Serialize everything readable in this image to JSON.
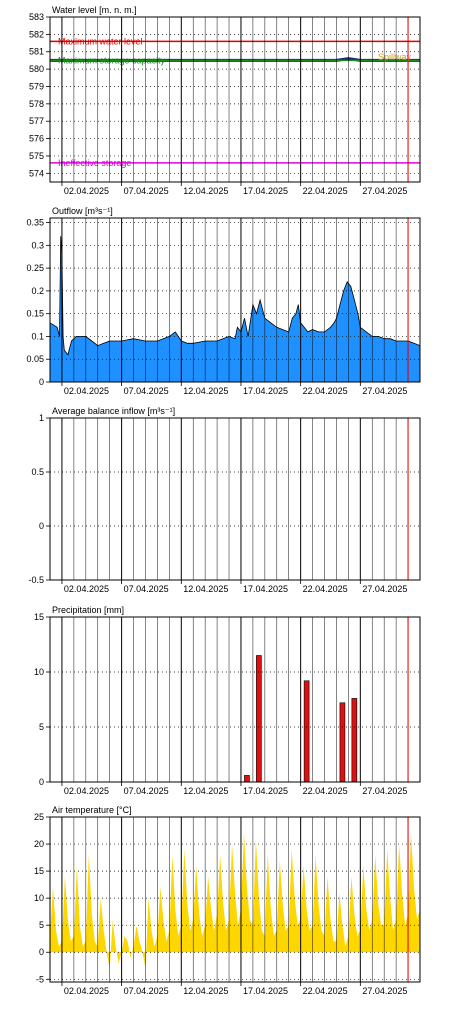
{
  "chart_data": [
    {
      "id": "water_level",
      "type": "line",
      "title": "Water level [m. n. m.]",
      "ylim": [
        573.5,
        583
      ],
      "yticks": [
        574,
        575,
        576,
        577,
        578,
        579,
        580,
        581,
        582,
        583
      ],
      "xticks": [
        "02.04.2025",
        "07.04.2025",
        "12.04.2025",
        "17.04.2025",
        "22.04.2025",
        "27.04.2025"
      ],
      "current_day": 30.0,
      "reference_lines": [
        {
          "name": "Maximum water level",
          "value": 581.6,
          "color": "#e00000"
        },
        {
          "name": "Maximum storage capacity",
          "value": 580.5,
          "color": "#1a8a1a"
        },
        {
          "name": "Ineffective storage",
          "value": 574.6,
          "color": "#e000e0"
        }
      ],
      "label_spillway": "Spillway",
      "series": [
        {
          "color": "#1a237e",
          "x": [
            0,
            5,
            10,
            15,
            20,
            24,
            25,
            26,
            31
          ],
          "values": [
            580.5,
            580.5,
            580.5,
            580.5,
            580.5,
            580.5,
            580.6,
            580.5,
            580.5
          ]
        }
      ]
    },
    {
      "id": "outflow",
      "type": "area",
      "title": "Outflow [m³s⁻¹]",
      "ylim": [
        0,
        0.36
      ],
      "yticks": [
        0,
        0.05,
        0.1,
        0.15,
        0.2,
        0.25,
        0.3,
        0.35
      ],
      "xticks": [
        "02.04.2025",
        "07.04.2025",
        "12.04.2025",
        "17.04.2025",
        "22.04.2025",
        "27.04.2025"
      ],
      "current_day": 30.0,
      "series": [
        {
          "color": "#1e90ff",
          "x": [
            0,
            0.3,
            0.6,
            0.8,
            0.9,
            1.0,
            1.1,
            1.2,
            1.5,
            1.8,
            2.2,
            3,
            3.5,
            4,
            4.5,
            5,
            6,
            7,
            8,
            9,
            10,
            10.5,
            11,
            11.5,
            12,
            13,
            14,
            15,
            15.5,
            15.7,
            16,
            16.3,
            16.6,
            17,
            17.3,
            17.6,
            18,
            18.5,
            19,
            19.5,
            20,
            20.3,
            20.6,
            20.8,
            21,
            21.3,
            21.6,
            22,
            22.5,
            23,
            23.5,
            23.8,
            24,
            24.3,
            24.6,
            24.9,
            25.2,
            25.5,
            25.8,
            26,
            26.5,
            27,
            27.5,
            28,
            28.5,
            29,
            29.5,
            30,
            30.5,
            31
          ],
          "values": [
            0.13,
            0.125,
            0.12,
            0.1,
            0.32,
            0.28,
            0.1,
            0.07,
            0.06,
            0.09,
            0.1,
            0.1,
            0.09,
            0.08,
            0.085,
            0.09,
            0.09,
            0.095,
            0.09,
            0.09,
            0.1,
            0.11,
            0.09,
            0.085,
            0.085,
            0.09,
            0.09,
            0.1,
            0.095,
            0.12,
            0.11,
            0.14,
            0.1,
            0.17,
            0.15,
            0.18,
            0.14,
            0.13,
            0.12,
            0.115,
            0.11,
            0.14,
            0.15,
            0.17,
            0.13,
            0.12,
            0.11,
            0.115,
            0.11,
            0.11,
            0.12,
            0.13,
            0.14,
            0.17,
            0.2,
            0.22,
            0.21,
            0.18,
            0.15,
            0.12,
            0.11,
            0.1,
            0.1,
            0.095,
            0.095,
            0.09,
            0.09,
            0.09,
            0.085,
            0.08
          ]
        }
      ]
    },
    {
      "id": "balance_inflow",
      "type": "line",
      "title": "Average balance inflow  [m³s⁻¹]",
      "ylim": [
        -0.5,
        1
      ],
      "yticks": [
        -0.5,
        0,
        0.5,
        1
      ],
      "xticks": [
        "02.04.2025",
        "07.04.2025",
        "12.04.2025",
        "17.04.2025",
        "22.04.2025",
        "27.04.2025"
      ],
      "current_day": 30.0,
      "series": []
    },
    {
      "id": "precipitation",
      "type": "bar",
      "title": "Precipitation [mm]",
      "ylim": [
        0,
        15
      ],
      "yticks": [
        0,
        5,
        10,
        15
      ],
      "xticks": [
        "02.04.2025",
        "07.04.2025",
        "12.04.2025",
        "17.04.2025",
        "22.04.2025",
        "27.04.2025"
      ],
      "current_day": 30.0,
      "series": [
        {
          "color": "#dd1111",
          "x": [
            16.5,
            17.5,
            21.5,
            24.5,
            25.5
          ],
          "values": [
            0.6,
            11.5,
            9.2,
            7.2,
            7.6
          ]
        }
      ]
    },
    {
      "id": "air_temperature",
      "type": "area",
      "title": "Air temperature [°C]",
      "ylim": [
        -5.5,
        25
      ],
      "yticks": [
        -5,
        0,
        5,
        10,
        15,
        20,
        25
      ],
      "xticks": [
        "02.04.2025",
        "07.04.2025",
        "12.04.2025",
        "17.04.2025",
        "22.04.2025",
        "27.04.2025"
      ],
      "current_day": 30.0,
      "series": [
        {
          "color": "#ffd700",
          "x": [
            0,
            0.25,
            0.5,
            0.75,
            1,
            1.25,
            1.5,
            1.75,
            2,
            2.25,
            2.5,
            2.75,
            3,
            3.25,
            3.5,
            3.75,
            4,
            4.25,
            4.5,
            4.75,
            5,
            5.25,
            5.5,
            5.75,
            6,
            6.25,
            6.5,
            6.75,
            7,
            7.25,
            7.5,
            7.75,
            8,
            8.25,
            8.5,
            8.75,
            9,
            9.25,
            9.5,
            9.75,
            10,
            10.25,
            10.5,
            10.75,
            11,
            11.25,
            11.5,
            11.75,
            12,
            12.25,
            12.5,
            12.75,
            13,
            13.25,
            13.5,
            13.75,
            14,
            14.25,
            14.5,
            14.75,
            15,
            15.25,
            15.5,
            15.75,
            16,
            16.25,
            16.5,
            16.75,
            17,
            17.25,
            17.5,
            17.75,
            18,
            18.25,
            18.5,
            18.75,
            19,
            19.25,
            19.5,
            19.75,
            20,
            20.25,
            20.5,
            20.75,
            21,
            21.25,
            21.5,
            21.75,
            22,
            22.25,
            22.5,
            22.75,
            23,
            23.25,
            23.5,
            23.75,
            24,
            24.25,
            24.5,
            24.75,
            25,
            25.25,
            25.5,
            25.75,
            26,
            26.25,
            26.5,
            26.75,
            27,
            27.25,
            27.5,
            27.75,
            28,
            28.25,
            28.5,
            28.75,
            29,
            29.25,
            29.5,
            29.75,
            30,
            30.25,
            30.5,
            30.75,
            31
          ],
          "values": [
            3,
            12,
            4,
            1,
            2,
            14,
            6,
            2,
            3,
            16,
            5,
            1,
            2,
            18,
            7,
            2,
            1,
            10,
            4,
            0,
            -3,
            6,
            1,
            -2,
            0,
            3,
            2,
            -1,
            1,
            5,
            2,
            0,
            -3,
            10,
            4,
            1,
            3,
            12,
            6,
            2,
            4,
            18,
            8,
            3,
            5,
            19,
            9,
            4,
            6,
            16,
            7,
            3,
            5,
            14,
            8,
            4,
            7,
            18,
            9,
            4,
            6,
            20,
            11,
            5,
            8,
            22,
            12,
            6,
            5,
            21,
            10,
            4,
            3,
            18,
            8,
            3,
            4,
            17,
            9,
            4,
            5,
            19,
            10,
            5,
            6,
            16,
            8,
            4,
            5,
            18,
            9,
            4,
            3,
            14,
            6,
            2,
            2,
            11,
            5,
            1,
            3,
            14,
            7,
            3,
            4,
            16,
            8,
            4,
            6,
            18,
            9,
            5,
            5,
            19,
            10,
            4,
            6,
            20,
            11,
            5,
            7,
            22,
            12,
            6,
            8
          ]
        }
      ]
    }
  ]
}
